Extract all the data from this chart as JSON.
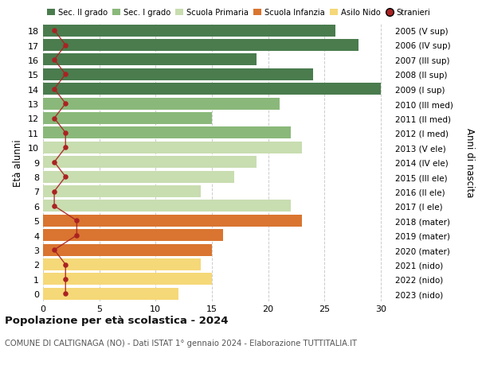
{
  "ages": [
    18,
    17,
    16,
    15,
    14,
    13,
    12,
    11,
    10,
    9,
    8,
    7,
    6,
    5,
    4,
    3,
    2,
    1,
    0
  ],
  "years": [
    "2005 (V sup)",
    "2006 (IV sup)",
    "2007 (III sup)",
    "2008 (II sup)",
    "2009 (I sup)",
    "2010 (III med)",
    "2011 (II med)",
    "2012 (I med)",
    "2013 (V ele)",
    "2014 (IV ele)",
    "2015 (III ele)",
    "2016 (II ele)",
    "2017 (I ele)",
    "2018 (mater)",
    "2019 (mater)",
    "2020 (mater)",
    "2021 (nido)",
    "2022 (nido)",
    "2023 (nido)"
  ],
  "bar_values": [
    26,
    28,
    19,
    24,
    30,
    21,
    15,
    22,
    23,
    19,
    17,
    14,
    22,
    23,
    16,
    15,
    14,
    15,
    12
  ],
  "bar_colors": [
    "#4a7c4e",
    "#4a7c4e",
    "#4a7c4e",
    "#4a7c4e",
    "#4a7c4e",
    "#8ab87a",
    "#8ab87a",
    "#8ab87a",
    "#c8ddb0",
    "#c8ddb0",
    "#c8ddb0",
    "#c8ddb0",
    "#c8ddb0",
    "#d97530",
    "#d97530",
    "#d97530",
    "#f5d878",
    "#f5d878",
    "#f5d878"
  ],
  "stranieri_values": [
    1,
    2,
    1,
    2,
    1,
    2,
    1,
    2,
    2,
    1,
    2,
    1,
    1,
    3,
    3,
    1,
    2,
    2,
    2
  ],
  "stranieri_color": "#aa2222",
  "legend_labels": [
    "Sec. II grado",
    "Sec. I grado",
    "Scuola Primaria",
    "Scuola Infanzia",
    "Asilo Nido",
    "Stranieri"
  ],
  "legend_colors": [
    "#4a7c4e",
    "#8ab87a",
    "#c8ddb0",
    "#d97530",
    "#f5d878",
    "#aa2222"
  ],
  "title": "Popolazione per età scolastica - 2024",
  "subtitle": "COMUNE DI CALTIGNAGA (NO) - Dati ISTAT 1° gennaio 2024 - Elaborazione TUTTITALIA.IT",
  "ylabel_left": "Età alunni",
  "ylabel_right": "Anni di nascita",
  "xlim": [
    0,
    31
  ],
  "background_color": "#ffffff",
  "grid_color": "#cccccc"
}
